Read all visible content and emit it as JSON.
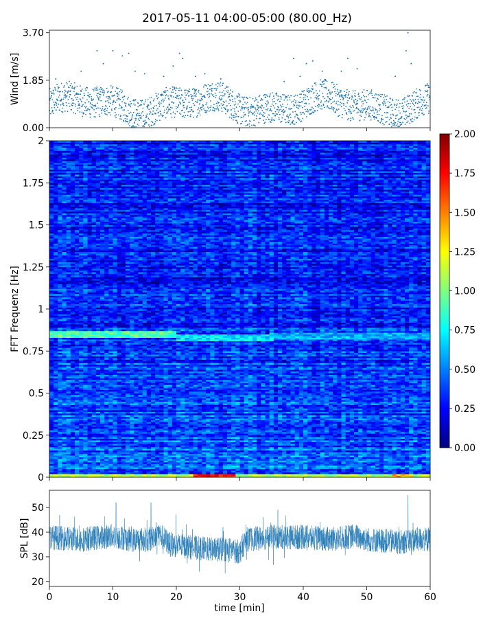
{
  "chart_data": [
    {
      "type": "scatter",
      "title": "2017-05-11 04:00-05:00 (80.00_Hz)",
      "ylabel": "Wind [m/s]",
      "ylim": [
        0,
        3.8
      ],
      "yticks": [
        "0.00",
        "1.85",
        "3.70"
      ],
      "xlim": [
        0,
        60
      ],
      "color": "#1f77b4",
      "samples_per_min": 30,
      "baseline_mean": 0.9,
      "noise_range": 1.2,
      "gusts": [
        {
          "x": 1.0,
          "y": 1.9
        },
        {
          "x": 5.0,
          "y": 2.2
        },
        {
          "x": 7.5,
          "y": 3.0
        },
        {
          "x": 8.5,
          "y": 2.5
        },
        {
          "x": 10.0,
          "y": 3.0
        },
        {
          "x": 11.5,
          "y": 2.8
        },
        {
          "x": 12.5,
          "y": 2.9
        },
        {
          "x": 13.5,
          "y": 2.2
        },
        {
          "x": 15.0,
          "y": 2.1
        },
        {
          "x": 18.0,
          "y": 2.0
        },
        {
          "x": 19.5,
          "y": 2.4
        },
        {
          "x": 20.5,
          "y": 2.9
        },
        {
          "x": 21.0,
          "y": 2.7
        },
        {
          "x": 23.0,
          "y": 2.0
        },
        {
          "x": 24.5,
          "y": 2.1
        },
        {
          "x": 27.0,
          "y": 1.9
        },
        {
          "x": 37.0,
          "y": 1.8
        },
        {
          "x": 38.5,
          "y": 2.7
        },
        {
          "x": 39.5,
          "y": 2.0
        },
        {
          "x": 40.5,
          "y": 2.5
        },
        {
          "x": 41.5,
          "y": 2.6
        },
        {
          "x": 43.0,
          "y": 2.2
        },
        {
          "x": 46.0,
          "y": 2.2
        },
        {
          "x": 47.0,
          "y": 2.7
        },
        {
          "x": 48.5,
          "y": 2.3
        },
        {
          "x": 54.5,
          "y": 2.0
        },
        {
          "x": 56.5,
          "y": 3.7
        },
        {
          "x": 56.2,
          "y": 3.0
        },
        {
          "x": 57.0,
          "y": 2.5
        }
      ]
    },
    {
      "type": "heatmap",
      "ylabel": "FFT Frequenz [Hz]",
      "ylim": [
        0,
        2
      ],
      "yticks": [
        "0",
        "0.25",
        "0.5",
        "0.75",
        "1",
        "1.25",
        "1.5",
        "1.75",
        "2"
      ],
      "xlim": [
        0,
        60
      ],
      "colormap": "jet",
      "colorbar_range": [
        0,
        2
      ],
      "colorbar_ticks": [
        "0.00",
        "0.25",
        "0.50",
        "0.75",
        "1.00",
        "1.25",
        "1.50",
        "1.75",
        "2.00"
      ],
      "time_bins": 90,
      "frequency_bins": 200,
      "background_level": 0.3,
      "features": [
        {
          "name": "band",
          "freq": 0.85,
          "from": 0,
          "to": 20,
          "level": 0.9
        },
        {
          "name": "band",
          "freq": 0.83,
          "from": 20,
          "to": 35,
          "level": 0.7
        },
        {
          "name": "band",
          "freq": 0.84,
          "from": 35,
          "to": 60,
          "level": 0.6
        },
        {
          "name": "low",
          "freq": 0.01,
          "from": 0,
          "to": 60,
          "level": 1.1
        },
        {
          "name": "hot",
          "freq": 0.01,
          "from": 23,
          "to": 29,
          "level": 1.7
        },
        {
          "name": "hot",
          "freq": 0.01,
          "from": 54,
          "to": 57,
          "level": 1.4
        }
      ]
    },
    {
      "type": "line",
      "ylabel": "SPL [dB]",
      "xlabel": "time [min]",
      "ylim": [
        18,
        57
      ],
      "yticks": [
        "20",
        "30",
        "40",
        "50"
      ],
      "xlim": [
        0,
        60
      ],
      "xticks": [
        "0",
        "10",
        "20",
        "30",
        "40",
        "50",
        "60"
      ],
      "color": "#1f77b4",
      "envelope": [
        {
          "x": 0,
          "y": 38
        },
        {
          "x": 5,
          "y": 37
        },
        {
          "x": 10,
          "y": 38.5
        },
        {
          "x": 13,
          "y": 37
        },
        {
          "x": 16,
          "y": 37
        },
        {
          "x": 17,
          "y": 40
        },
        {
          "x": 19,
          "y": 35
        },
        {
          "x": 25,
          "y": 33
        },
        {
          "x": 28,
          "y": 33
        },
        {
          "x": 30,
          "y": 32
        },
        {
          "x": 31,
          "y": 37
        },
        {
          "x": 35,
          "y": 38
        },
        {
          "x": 40,
          "y": 38
        },
        {
          "x": 45,
          "y": 37
        },
        {
          "x": 48,
          "y": 38.5
        },
        {
          "x": 50,
          "y": 37
        },
        {
          "x": 55,
          "y": 36
        },
        {
          "x": 58,
          "y": 37
        },
        {
          "x": 60,
          "y": 37
        }
      ],
      "spread": 5,
      "peaks": [
        {
          "x": 56.5,
          "y": 55
        },
        {
          "x": 10.5,
          "y": 52
        },
        {
          "x": 16.0,
          "y": 52
        }
      ]
    }
  ]
}
